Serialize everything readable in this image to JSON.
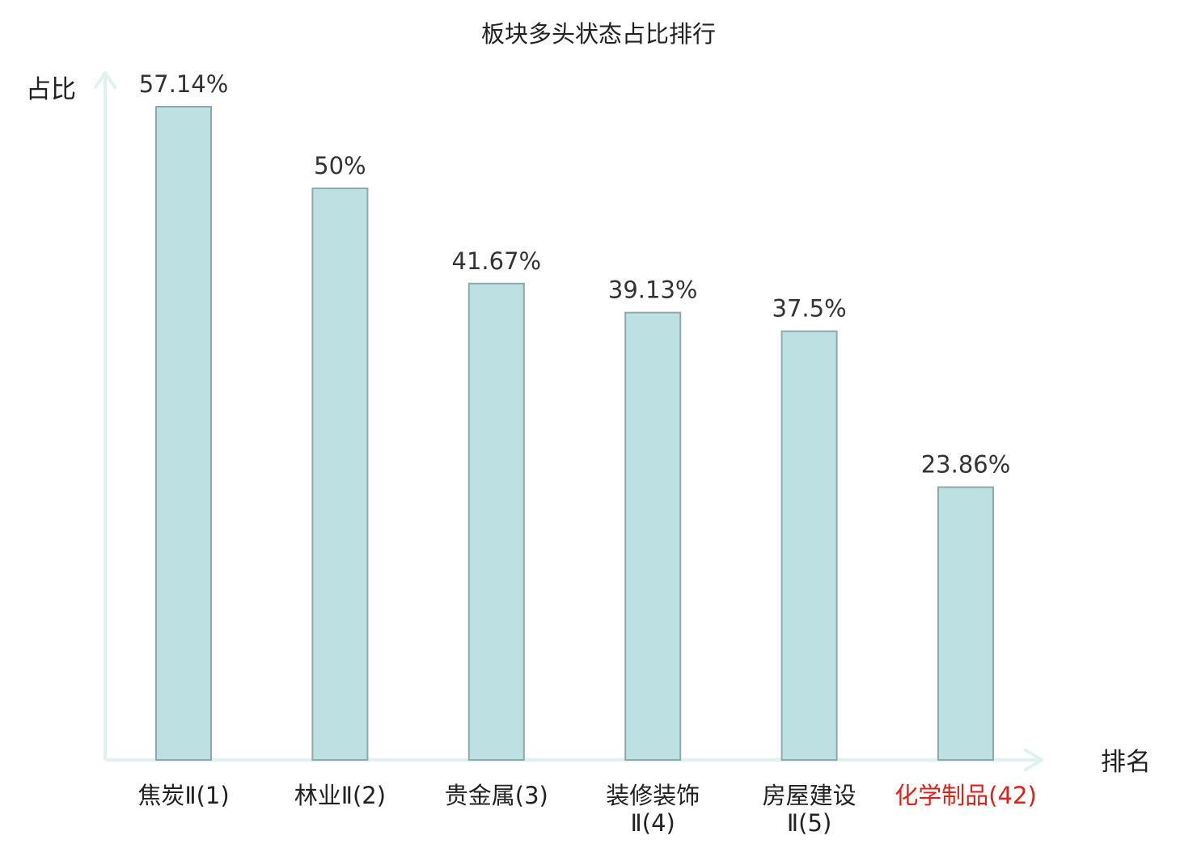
{
  "chart_data": {
    "type": "bar",
    "title": "板块多头状态占比排行",
    "xlabel": "排名",
    "ylabel": "占比",
    "ylim": [
      0,
      60
    ],
    "grid": false,
    "legend": "none",
    "categories": [
      {
        "lines": [
          "焦炭Ⅱ(1)"
        ],
        "highlight": false
      },
      {
        "lines": [
          "林业Ⅱ(2)"
        ],
        "highlight": false
      },
      {
        "lines": [
          "贵金属(3)"
        ],
        "highlight": false
      },
      {
        "lines": [
          "装修装饰",
          "Ⅱ(4)"
        ],
        "highlight": false
      },
      {
        "lines": [
          "房屋建设",
          "Ⅱ(5)"
        ],
        "highlight": false
      },
      {
        "lines": [
          "化学制品(42)"
        ],
        "highlight": true
      }
    ],
    "values": [
      57.14,
      50,
      41.67,
      39.13,
      37.5,
      23.86
    ],
    "value_labels": [
      "57.14%",
      "50%",
      "41.67%",
      "39.13%",
      "37.5%",
      "23.86%"
    ],
    "colors": {
      "bar_fill": "#bde0e3",
      "bar_stroke": "#8fa9aa",
      "axis": "#dff2ef",
      "text": "#222222",
      "value_text": "#333333",
      "highlight_text": "#e0201b"
    }
  }
}
